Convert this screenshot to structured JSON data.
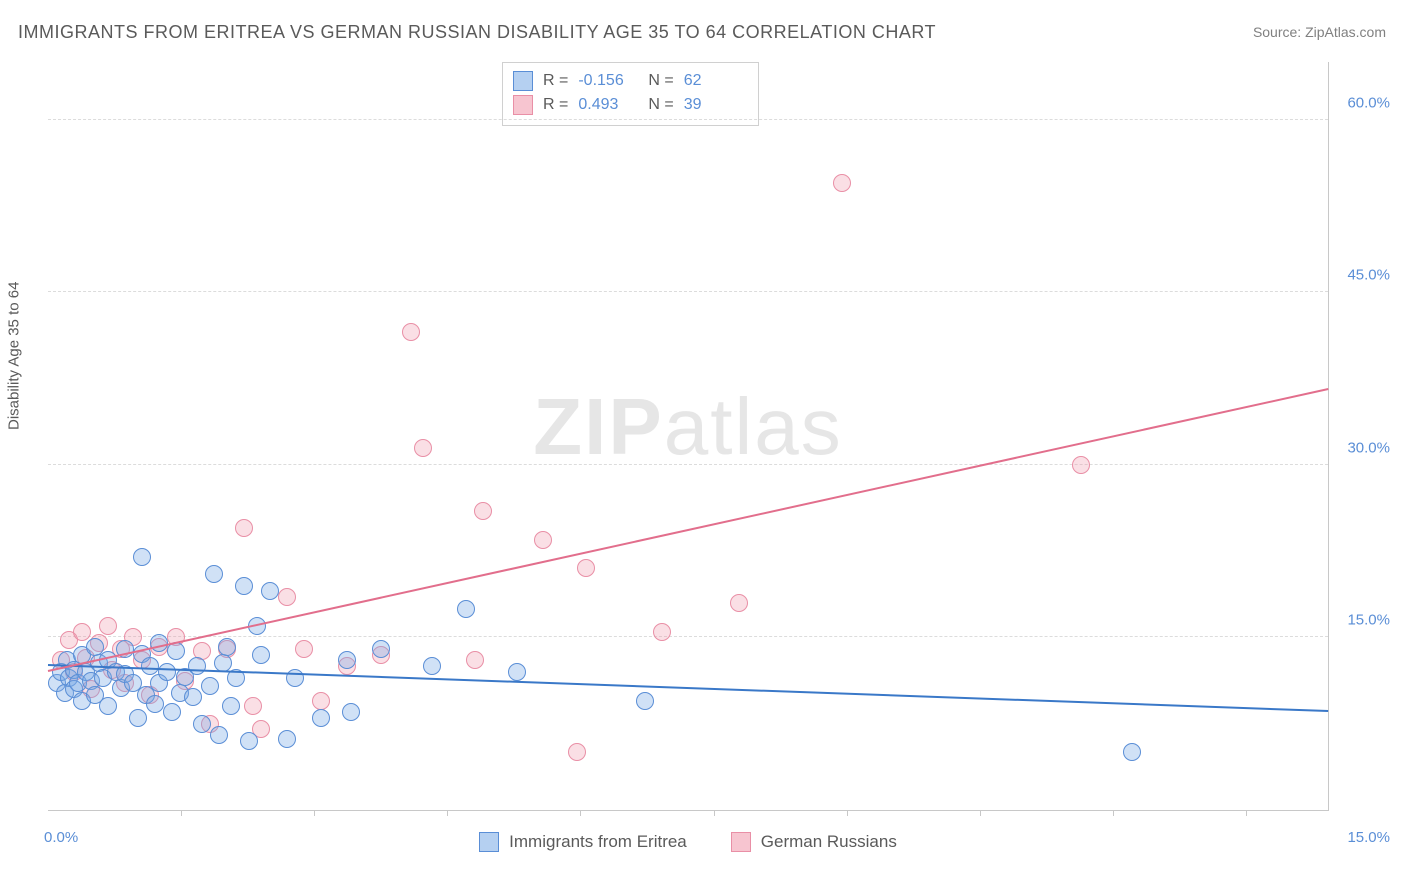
{
  "title": "IMMIGRANTS FROM ERITREA VS GERMAN RUSSIAN DISABILITY AGE 35 TO 64 CORRELATION CHART",
  "source": "Source: ZipAtlas.com",
  "y_axis_title": "Disability Age 35 to 64",
  "watermark": {
    "bold": "ZIP",
    "rest": "atlas"
  },
  "chart": {
    "type": "scatter",
    "xlim": [
      0,
      15
    ],
    "ylim": [
      0,
      65
    ],
    "x_ticks": [
      0,
      15
    ],
    "x_tick_labels": [
      "0.0%",
      "15.0%"
    ],
    "x_minor_ticks": [
      1.56,
      3.12,
      4.68,
      6.24,
      7.8,
      9.36,
      10.92,
      12.48,
      14.04
    ],
    "y_ticks": [
      15,
      30,
      45,
      60
    ],
    "y_tick_labels": [
      "15.0%",
      "30.0%",
      "45.0%",
      "60.0%"
    ],
    "grid_color": "#dcdcdc",
    "background_color": "#ffffff",
    "marker_radius": 9,
    "series": [
      {
        "key": "blue",
        "label": "Immigrants from Eritrea",
        "fill": "rgba(120,170,230,0.35)",
        "stroke": "#5a8ed6",
        "R": "-0.156",
        "N": "62",
        "trend": {
          "x1": 0,
          "y1": 12.5,
          "x2": 15,
          "y2": 8.5,
          "color": "#3a78c8"
        },
        "points": [
          [
            0.1,
            11.0
          ],
          [
            0.15,
            12.0
          ],
          [
            0.2,
            10.2
          ],
          [
            0.22,
            13.0
          ],
          [
            0.25,
            11.5
          ],
          [
            0.3,
            12.2
          ],
          [
            0.3,
            10.5
          ],
          [
            0.35,
            11.0
          ],
          [
            0.4,
            13.5
          ],
          [
            0.4,
            9.5
          ],
          [
            0.45,
            12.0
          ],
          [
            0.5,
            11.2
          ],
          [
            0.55,
            14.2
          ],
          [
            0.55,
            10.0
          ],
          [
            0.6,
            12.8
          ],
          [
            0.65,
            11.5
          ],
          [
            0.7,
            13.0
          ],
          [
            0.7,
            9.0
          ],
          [
            0.8,
            12.0
          ],
          [
            0.85,
            10.6
          ],
          [
            0.9,
            14.0
          ],
          [
            0.9,
            11.8
          ],
          [
            1.0,
            11.0
          ],
          [
            1.05,
            8.0
          ],
          [
            1.1,
            13.6
          ],
          [
            1.15,
            10.0
          ],
          [
            1.2,
            12.5
          ],
          [
            1.25,
            9.2
          ],
          [
            1.3,
            11.0
          ],
          [
            1.3,
            14.5
          ],
          [
            1.4,
            12.0
          ],
          [
            1.45,
            8.5
          ],
          [
            1.5,
            13.8
          ],
          [
            1.55,
            10.2
          ],
          [
            1.6,
            11.6
          ],
          [
            1.7,
            9.8
          ],
          [
            1.75,
            12.5
          ],
          [
            1.8,
            7.5
          ],
          [
            1.9,
            10.8
          ],
          [
            1.95,
            20.5
          ],
          [
            2.0,
            6.5
          ],
          [
            2.05,
            12.8
          ],
          [
            2.1,
            14.2
          ],
          [
            2.15,
            9.0
          ],
          [
            2.2,
            11.5
          ],
          [
            2.3,
            19.5
          ],
          [
            2.35,
            6.0
          ],
          [
            2.45,
            16.0
          ],
          [
            2.5,
            13.5
          ],
          [
            2.6,
            19.0
          ],
          [
            2.8,
            6.2
          ],
          [
            2.9,
            11.5
          ],
          [
            3.2,
            8.0
          ],
          [
            3.5,
            13.0
          ],
          [
            3.55,
            8.5
          ],
          [
            3.9,
            14.0
          ],
          [
            4.5,
            12.5
          ],
          [
            4.9,
            17.5
          ],
          [
            5.5,
            12.0
          ],
          [
            7.0,
            9.5
          ],
          [
            12.7,
            5.0
          ],
          [
            1.1,
            22.0
          ]
        ]
      },
      {
        "key": "pink",
        "label": "German Russians",
        "fill": "rgba(240,150,170,0.30)",
        "stroke": "#e98fa6",
        "R": "0.493",
        "N": "39",
        "trend": {
          "x1": 0,
          "y1": 12.0,
          "x2": 15,
          "y2": 36.5,
          "color": "#e26e8c"
        },
        "points": [
          [
            0.15,
            13.0
          ],
          [
            0.25,
            14.8
          ],
          [
            0.3,
            12.0
          ],
          [
            0.4,
            15.5
          ],
          [
            0.45,
            13.2
          ],
          [
            0.5,
            10.5
          ],
          [
            0.6,
            14.5
          ],
          [
            0.7,
            16.0
          ],
          [
            0.75,
            12.2
          ],
          [
            0.85,
            14.0
          ],
          [
            0.9,
            11.0
          ],
          [
            1.0,
            15.0
          ],
          [
            1.1,
            13.0
          ],
          [
            1.2,
            10.0
          ],
          [
            1.3,
            14.2
          ],
          [
            1.5,
            15.0
          ],
          [
            1.6,
            11.2
          ],
          [
            1.8,
            13.8
          ],
          [
            1.9,
            7.5
          ],
          [
            2.1,
            14.0
          ],
          [
            2.3,
            24.5
          ],
          [
            2.4,
            9.0
          ],
          [
            2.5,
            7.0
          ],
          [
            2.8,
            18.5
          ],
          [
            3.0,
            14.0
          ],
          [
            3.2,
            9.5
          ],
          [
            3.5,
            12.5
          ],
          [
            3.9,
            13.5
          ],
          [
            4.25,
            41.5
          ],
          [
            4.4,
            31.5
          ],
          [
            5.0,
            13.0
          ],
          [
            5.1,
            26.0
          ],
          [
            5.8,
            23.5
          ],
          [
            6.2,
            5.0
          ],
          [
            6.3,
            21.0
          ],
          [
            7.2,
            15.5
          ],
          [
            8.1,
            18.0
          ],
          [
            9.3,
            54.5
          ],
          [
            12.1,
            30.0
          ]
        ]
      }
    ]
  },
  "stats_box_labels": {
    "R": "R =",
    "N": "N ="
  },
  "legend_labels": [
    "Immigrants from Eritrea",
    "German Russians"
  ]
}
